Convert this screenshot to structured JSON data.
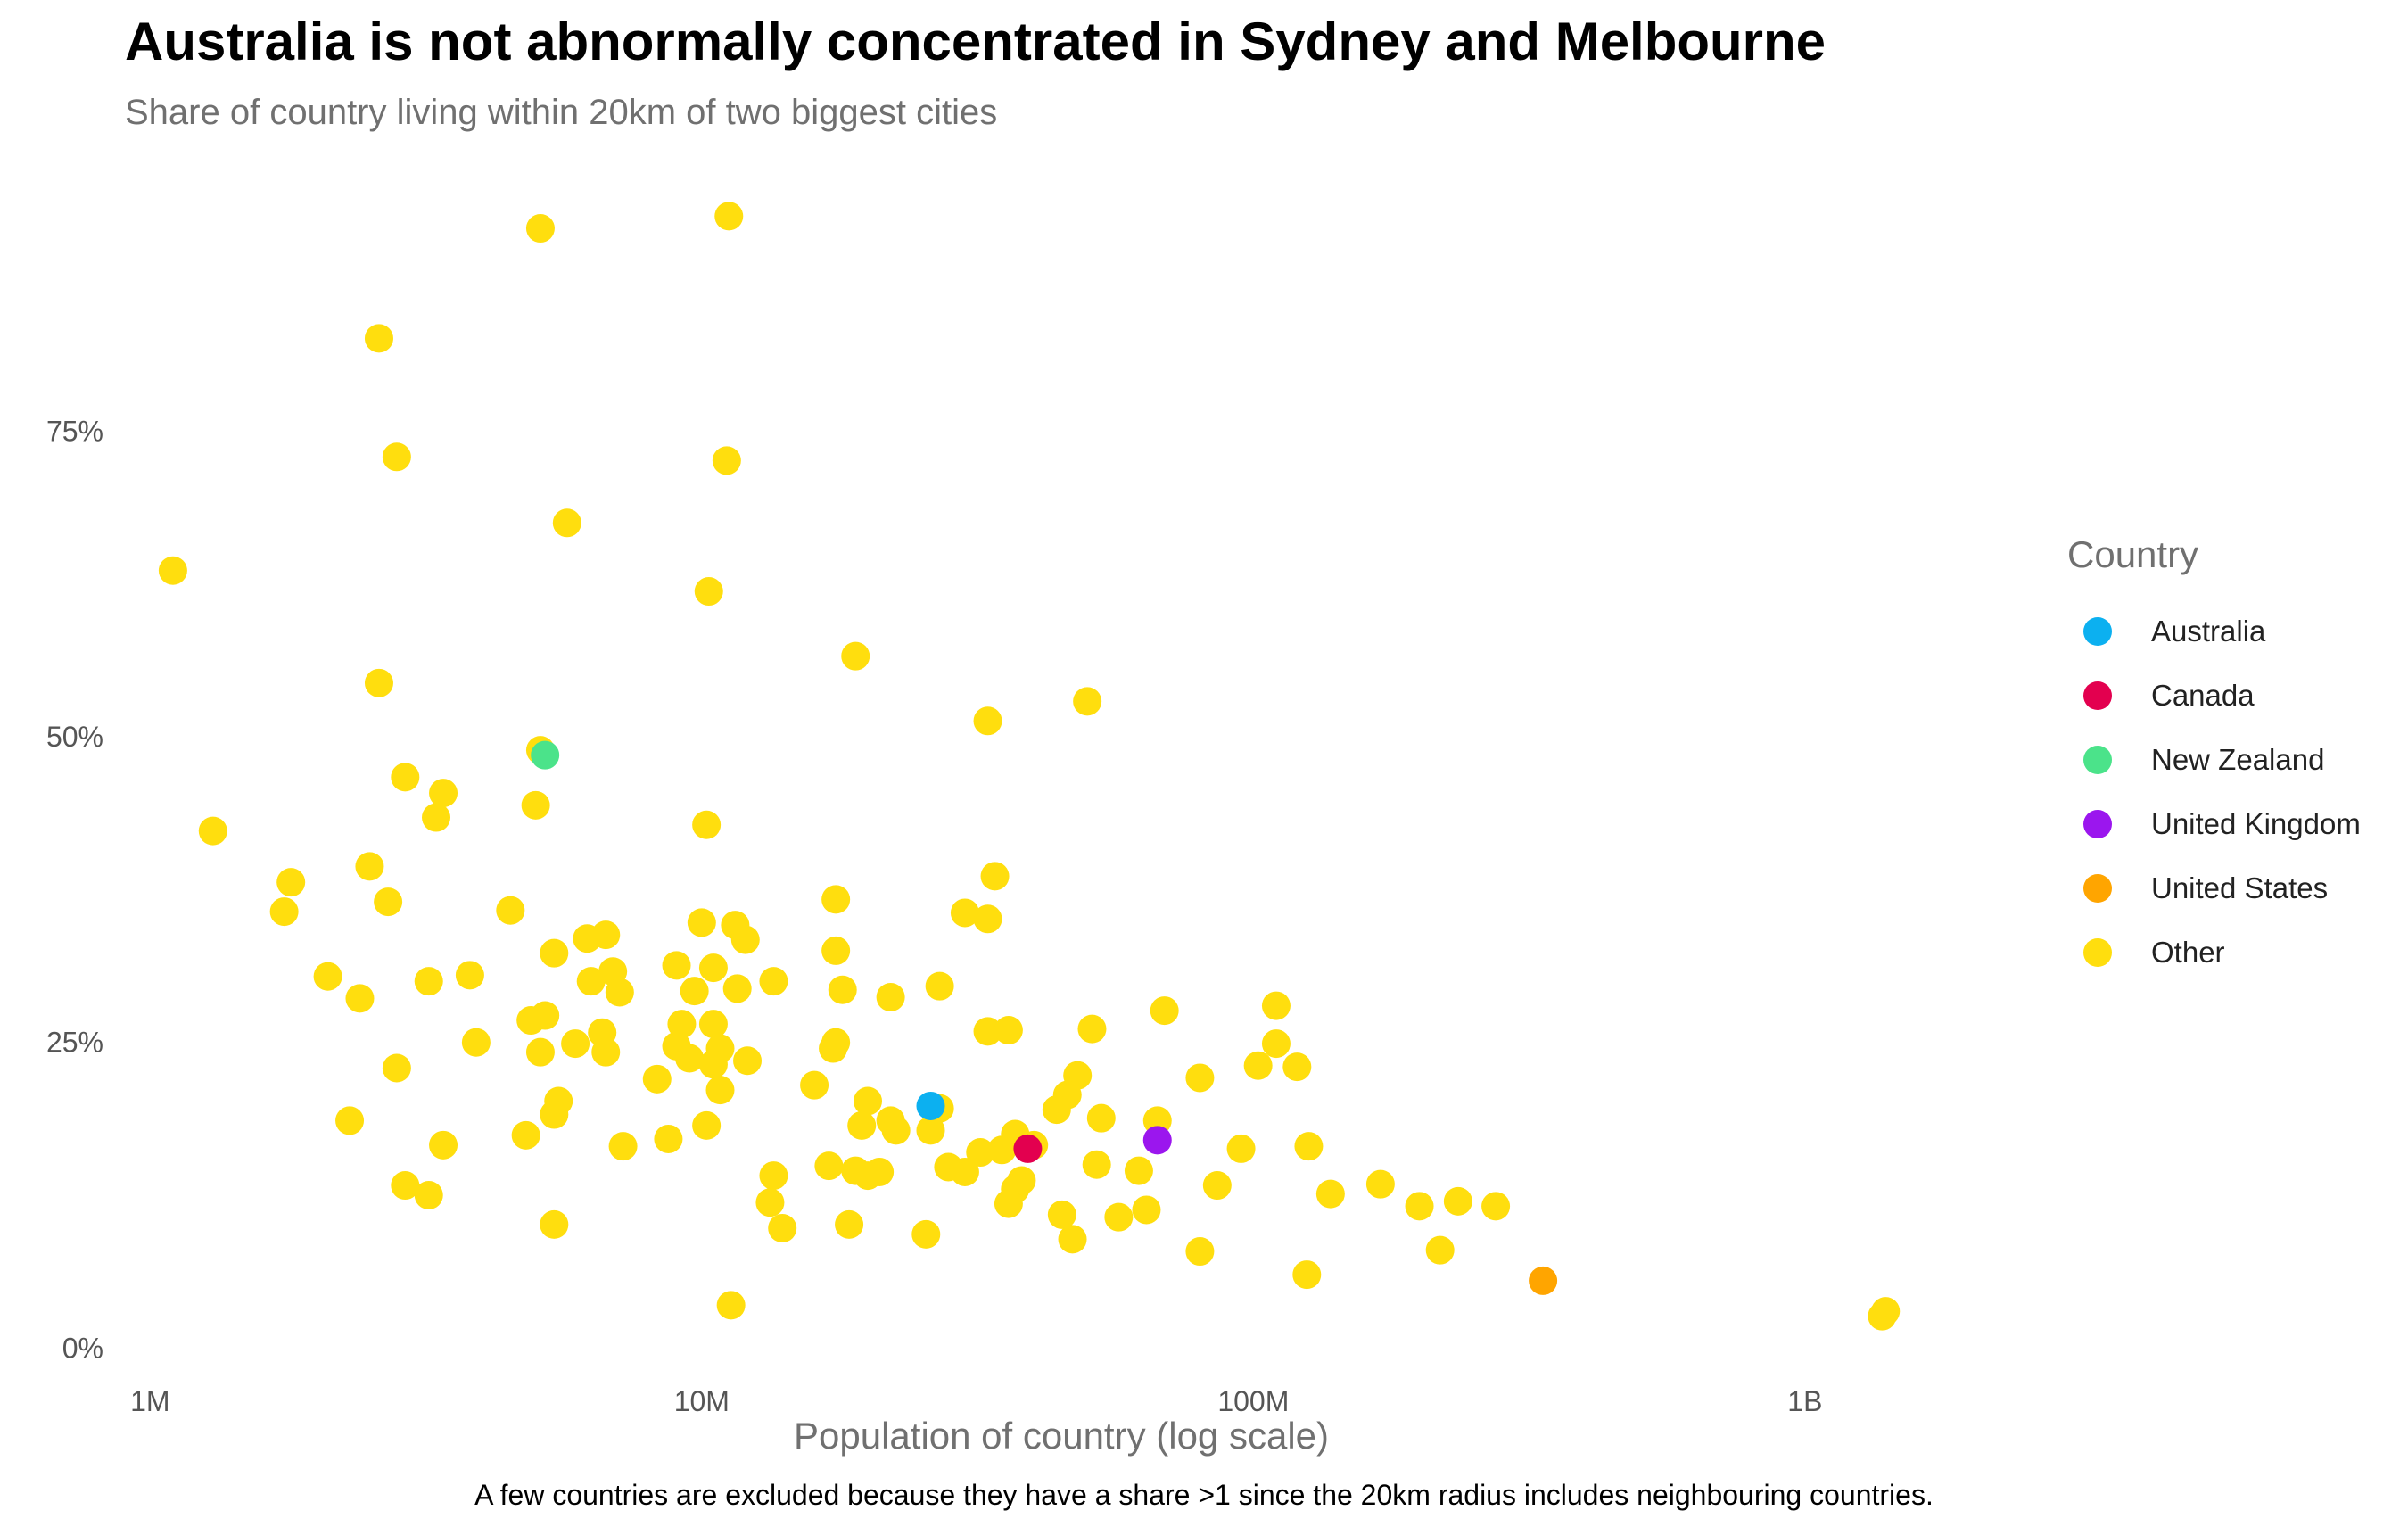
{
  "title": "Australia is not abnormally concentrated in Sydney and Melbourne",
  "subtitle": "Share of country living within 20km of two biggest cities",
  "caption": "A few countries are excluded because they have a share >1 since the 20km radius includes neighbouring countries.",
  "chart_data": {
    "type": "scatter",
    "title": "Australia is not abnormally concentrated in Sydney and Melbourne",
    "subtitle": "Share of country living within 20km of two biggest cities",
    "xlabel": "Population of country (log scale)",
    "ylabel": "",
    "x_scale": "log10",
    "xlim": [
      900000,
      2500000000
    ],
    "ylim": [
      -0.01,
      0.935
    ],
    "x_ticks": [
      {
        "value": 1000000,
        "label": "1M"
      },
      {
        "value": 10000000,
        "label": "10M"
      },
      {
        "value": 100000000,
        "label": "100M"
      },
      {
        "value": 1000000000,
        "label": "1B"
      }
    ],
    "y_ticks": [
      {
        "value": 0,
        "label": "0%"
      },
      {
        "value": 0.25,
        "label": "25%"
      },
      {
        "value": 0.5,
        "label": "50%"
      },
      {
        "value": 0.75,
        "label": "75%"
      }
    ],
    "grid": false,
    "legend": {
      "title": "Country",
      "position": "right"
    },
    "series": [
      {
        "name": "Australia",
        "color": "#0cb0f0",
        "points": [
          [
            26000000,
            0.198
          ]
        ]
      },
      {
        "name": "Canada",
        "color": "#e3004f",
        "points": [
          [
            39000000,
            0.163
          ]
        ]
      },
      {
        "name": "New Zealand",
        "color": "#4be38a",
        "points": [
          [
            5200000,
            0.485
          ]
        ]
      },
      {
        "name": "United Kingdom",
        "color": "#9b16ee",
        "points": [
          [
            67000000,
            0.17
          ]
        ]
      },
      {
        "name": "United States",
        "color": "#ffa500",
        "points": [
          [
            335000000,
            0.055
          ]
        ]
      },
      {
        "name": "Other",
        "color": "#ffde0e",
        "points": [
          [
            5100000,
            0.916
          ],
          [
            11200000,
            0.926
          ],
          [
            2600000,
            0.826
          ],
          [
            2800000,
            0.729
          ],
          [
            11100000,
            0.726
          ],
          [
            5700000,
            0.675
          ],
          [
            1100000,
            0.636
          ],
          [
            10300000,
            0.619
          ],
          [
            19000000,
            0.566
          ],
          [
            2600000,
            0.544
          ],
          [
            33000000,
            0.513
          ],
          [
            50000000,
            0.529
          ],
          [
            5100000,
            0.489
          ],
          [
            2900000,
            0.467
          ],
          [
            3400000,
            0.454
          ],
          [
            3300000,
            0.434
          ],
          [
            5000000,
            0.444
          ],
          [
            10200000,
            0.428
          ],
          [
            1300000,
            0.423
          ],
          [
            2500000,
            0.394
          ],
          [
            1800000,
            0.381
          ],
          [
            1750000,
            0.357
          ],
          [
            2700000,
            0.365
          ],
          [
            4500000,
            0.358
          ],
          [
            34000000,
            0.386
          ],
          [
            17500000,
            0.367
          ],
          [
            30000000,
            0.356
          ],
          [
            33000000,
            0.351
          ],
          [
            10000000,
            0.348
          ],
          [
            11500000,
            0.346
          ],
          [
            12000000,
            0.334
          ],
          [
            6700000,
            0.338
          ],
          [
            6200000,
            0.335
          ],
          [
            5400000,
            0.323
          ],
          [
            17500000,
            0.325
          ],
          [
            9000000,
            0.313
          ],
          [
            10500000,
            0.311
          ],
          [
            6900000,
            0.308
          ],
          [
            2100000,
            0.304
          ],
          [
            3200000,
            0.3
          ],
          [
            3800000,
            0.305
          ],
          [
            6300000,
            0.3
          ],
          [
            7100000,
            0.291
          ],
          [
            9700000,
            0.292
          ],
          [
            11600000,
            0.294
          ],
          [
            13500000,
            0.3
          ],
          [
            18000000,
            0.293
          ],
          [
            22000000,
            0.287
          ],
          [
            27000000,
            0.296
          ],
          [
            2400000,
            0.286
          ],
          [
            5200000,
            0.272
          ],
          [
            4900000,
            0.268
          ],
          [
            6600000,
            0.258
          ],
          [
            9200000,
            0.265
          ],
          [
            10500000,
            0.265
          ],
          [
            33000000,
            0.259
          ],
          [
            36000000,
            0.26
          ],
          [
            51000000,
            0.261
          ],
          [
            69000000,
            0.276
          ],
          [
            110000000,
            0.28
          ],
          [
            3900000,
            0.25
          ],
          [
            5900000,
            0.249
          ],
          [
            5100000,
            0.242
          ],
          [
            6700000,
            0.242
          ],
          [
            9000000,
            0.247
          ],
          [
            10800000,
            0.245
          ],
          [
            17500000,
            0.25
          ],
          [
            17300000,
            0.245
          ],
          [
            110000000,
            0.249
          ],
          [
            9500000,
            0.237
          ],
          [
            10500000,
            0.232
          ],
          [
            12100000,
            0.235
          ],
          [
            2800000,
            0.229
          ],
          [
            8300000,
            0.22
          ],
          [
            16000000,
            0.215
          ],
          [
            48000000,
            0.223
          ],
          [
            80000000,
            0.221
          ],
          [
            102000000,
            0.231
          ],
          [
            120000000,
            0.23
          ],
          [
            5500000,
            0.202
          ],
          [
            5400000,
            0.191
          ],
          [
            10800000,
            0.211
          ],
          [
            20000000,
            0.202
          ],
          [
            46000000,
            0.207
          ],
          [
            44000000,
            0.195
          ],
          [
            27000000,
            0.196
          ],
          [
            2300000,
            0.186
          ],
          [
            19500000,
            0.182
          ],
          [
            22000000,
            0.186
          ],
          [
            22500000,
            0.178
          ],
          [
            26000000,
            0.178
          ],
          [
            37000000,
            0.175
          ],
          [
            53000000,
            0.188
          ],
          [
            67000000,
            0.186
          ],
          [
            10200000,
            0.182
          ],
          [
            4800000,
            0.174
          ],
          [
            3400000,
            0.166
          ],
          [
            7200000,
            0.165
          ],
          [
            8700000,
            0.171
          ],
          [
            32000000,
            0.16
          ],
          [
            35000000,
            0.162
          ],
          [
            40000000,
            0.166
          ],
          [
            95000000,
            0.163
          ],
          [
            126000000,
            0.165
          ],
          [
            17000000,
            0.149
          ],
          [
            19000000,
            0.145
          ],
          [
            21000000,
            0.144
          ],
          [
            20000000,
            0.141
          ],
          [
            28000000,
            0.148
          ],
          [
            30000000,
            0.144
          ],
          [
            52000000,
            0.15
          ],
          [
            62000000,
            0.145
          ],
          [
            13500000,
            0.141
          ],
          [
            2900000,
            0.133
          ],
          [
            3200000,
            0.125
          ],
          [
            13300000,
            0.119
          ],
          [
            38000000,
            0.137
          ],
          [
            37000000,
            0.13
          ],
          [
            36000000,
            0.118
          ],
          [
            86000000,
            0.133
          ],
          [
            138000000,
            0.126
          ],
          [
            170000000,
            0.134
          ],
          [
            200000000,
            0.116
          ],
          [
            235000000,
            0.12
          ],
          [
            275000000,
            0.116
          ],
          [
            45000000,
            0.109
          ],
          [
            57000000,
            0.107
          ],
          [
            64000000,
            0.113
          ],
          [
            5400000,
            0.101
          ],
          [
            14000000,
            0.098
          ],
          [
            18500000,
            0.101
          ],
          [
            25500000,
            0.093
          ],
          [
            47000000,
            0.089
          ],
          [
            80000000,
            0.079
          ],
          [
            218000000,
            0.08
          ],
          [
            125000000,
            0.06
          ],
          [
            11300000,
            0.035
          ],
          [
            1400000000,
            0.03
          ],
          [
            1380000000,
            0.026
          ]
        ]
      }
    ]
  }
}
